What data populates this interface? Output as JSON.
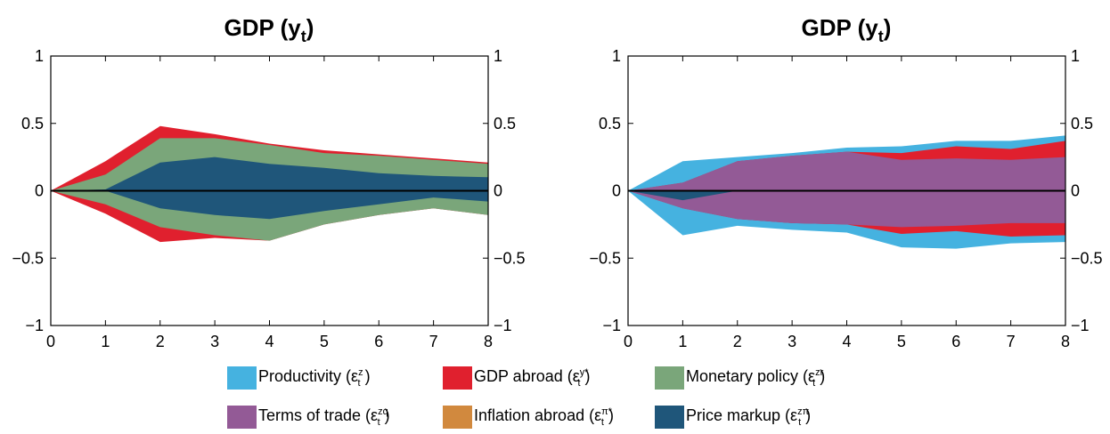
{
  "chart_data": [
    {
      "type": "area",
      "title": "GDP (y",
      "title_sub": "t",
      "title_close": ")",
      "xlim": [
        0,
        8
      ],
      "ylim": [
        -1,
        1
      ],
      "x_ticks": [
        0,
        1,
        2,
        3,
        4,
        5,
        6,
        7,
        8
      ],
      "y_ticks": [
        "−1",
        "−0.5",
        "0",
        "0.5",
        "1"
      ],
      "y_tick_values": [
        -1,
        -0.5,
        0,
        0.5,
        1
      ],
      "y_ticks_right": [
        "−1",
        "−0.5",
        "0",
        "0.5",
        "1"
      ],
      "x": [
        0,
        1,
        2,
        3,
        4,
        5,
        6,
        7,
        8
      ],
      "bands": [
        {
          "name": "GDP abroad",
          "color": "#e0202e",
          "upper": [
            0,
            0.22,
            0.48,
            0.42,
            0.35,
            0.3,
            0.27,
            0.24,
            0.21
          ],
          "lower": [
            0,
            -0.17,
            -0.38,
            -0.35,
            -0.37,
            -0.25,
            -0.18,
            -0.13,
            -0.18
          ]
        },
        {
          "name": "Monetary policy",
          "color": "#7aa67a",
          "upper": [
            0,
            0.12,
            0.39,
            0.39,
            0.34,
            0.28,
            0.26,
            0.23,
            0.2
          ],
          "lower": [
            0,
            -0.1,
            -0.27,
            -0.33,
            -0.37,
            -0.25,
            -0.18,
            -0.13,
            -0.18
          ]
        },
        {
          "name": "Price markup",
          "color": "#1f567a",
          "upper": [
            0,
            0.01,
            0.21,
            0.25,
            0.2,
            0.17,
            0.13,
            0.11,
            0.1
          ],
          "lower": [
            0,
            0.0,
            -0.13,
            -0.18,
            -0.21,
            -0.15,
            -0.1,
            -0.05,
            -0.08
          ]
        }
      ]
    },
    {
      "type": "area",
      "title": "GDP (y",
      "title_sub": "t",
      "title_close": ")",
      "xlim": [
        0,
        8
      ],
      "ylim": [
        -1,
        1
      ],
      "x_ticks": [
        0,
        1,
        2,
        3,
        4,
        5,
        6,
        7,
        8
      ],
      "y_ticks": [
        "−1",
        "−0.5",
        "0",
        "0.5",
        "1"
      ],
      "y_tick_values": [
        -1,
        -0.5,
        0,
        0.5,
        1
      ],
      "y_ticks_right": [
        "−1",
        "−0.5",
        "0",
        "0.5",
        "1"
      ],
      "x": [
        0,
        1,
        2,
        3,
        4,
        5,
        6,
        7,
        8
      ],
      "bands": [
        {
          "name": "Productivity",
          "color": "#45b2e0",
          "upper": [
            0,
            0.22,
            0.25,
            0.28,
            0.32,
            0.33,
            0.37,
            0.37,
            0.41
          ],
          "lower": [
            0,
            -0.33,
            -0.26,
            -0.29,
            -0.31,
            -0.42,
            -0.43,
            -0.39,
            -0.38
          ]
        },
        {
          "name": "GDP abroad",
          "color": "#e0202e",
          "upper": [
            0,
            0.06,
            0.22,
            0.26,
            0.29,
            0.28,
            0.33,
            0.31,
            0.37
          ],
          "lower": [
            0,
            -0.13,
            -0.21,
            -0.24,
            -0.25,
            -0.32,
            -0.3,
            -0.34,
            -0.33
          ]
        },
        {
          "name": "Terms of trade",
          "color": "#935a96",
          "upper": [
            0,
            0.06,
            0.22,
            0.26,
            0.29,
            0.23,
            0.24,
            0.23,
            0.25
          ],
          "lower": [
            0,
            -0.13,
            -0.21,
            -0.24,
            -0.25,
            -0.27,
            -0.26,
            -0.24,
            -0.24
          ]
        },
        {
          "name": "Price markup",
          "color": "#1f567a",
          "upper": [
            0,
            0.0,
            0.0,
            0.0,
            0.0,
            0.0,
            0.0,
            0.0,
            0.0
          ],
          "lower": [
            0,
            -0.07,
            0.0,
            0.0,
            0.0,
            0.0,
            0.0,
            0.0,
            0.0
          ]
        }
      ]
    }
  ],
  "legend": [
    {
      "label": "Productivity (ε",
      "sub": "t",
      "sup": "z",
      "sup2": "",
      "close": ")",
      "color": "#45b2e0"
    },
    {
      "label": "GDP abroad (ε",
      "sub": "t",
      "sup": "y",
      "sup2": "*",
      "close": ")",
      "color": "#e0202e"
    },
    {
      "label": "Monetary policy (ε",
      "sub": "t",
      "sup": "z",
      "sup2": "r",
      "close": ")",
      "color": "#7aa67a"
    },
    {
      "label": "Terms of trade (ε",
      "sub": "t",
      "sup": "z",
      "sup2": "q",
      "close": ")",
      "color": "#935a96"
    },
    {
      "label": "Inflation abroad (ε",
      "sub": "t",
      "sup": "π",
      "sup2": "*",
      "close": ")",
      "color": "#d1893e"
    },
    {
      "label": "Price markup (ε",
      "sub": "t",
      "sup": "z",
      "sup2": "π",
      "close": ")",
      "color": "#1f567a"
    }
  ]
}
